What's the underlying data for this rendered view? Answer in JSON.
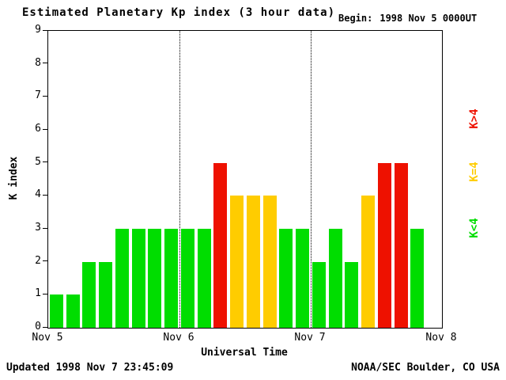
{
  "header": {
    "title": "Estimated Planetary Kp index (3 hour data)",
    "begin_label": "Begin:",
    "begin_value": "1998 Nov 5 0000UT"
  },
  "chart_data": {
    "type": "bar",
    "title": "Estimated Planetary Kp index (3 hour data)",
    "xlabel": "Universal Time",
    "ylabel": "K index",
    "ylim": [
      0,
      9
    ],
    "x_tick_labels": [
      "Nov 5",
      "Nov 6",
      "Nov 7",
      "Nov 8"
    ],
    "days": 3,
    "bars_per_day": 8,
    "values": [
      1,
      1,
      2,
      2,
      3,
      3,
      3,
      3,
      3,
      3,
      5,
      4,
      4,
      4,
      3,
      3,
      2,
      3,
      2,
      4,
      5,
      5,
      3
    ],
    "colors": {
      "low": "#00dd00",
      "mid": "#ffcc00",
      "high": "#ee1100"
    },
    "legend": [
      {
        "label": "K>4",
        "color": "#ee1100"
      },
      {
        "label": "K=4",
        "color": "#ffcc00"
      },
      {
        "label": "K<4",
        "color": "#00dd00"
      }
    ],
    "grid": "day-separator dotted vertical lines at Nov 6 and Nov 7",
    "legend_position": "right-rotated"
  },
  "footer": {
    "updated": "Updated 1998 Nov 7 23:45:09",
    "source": "NOAA/SEC Boulder, CO USA"
  }
}
